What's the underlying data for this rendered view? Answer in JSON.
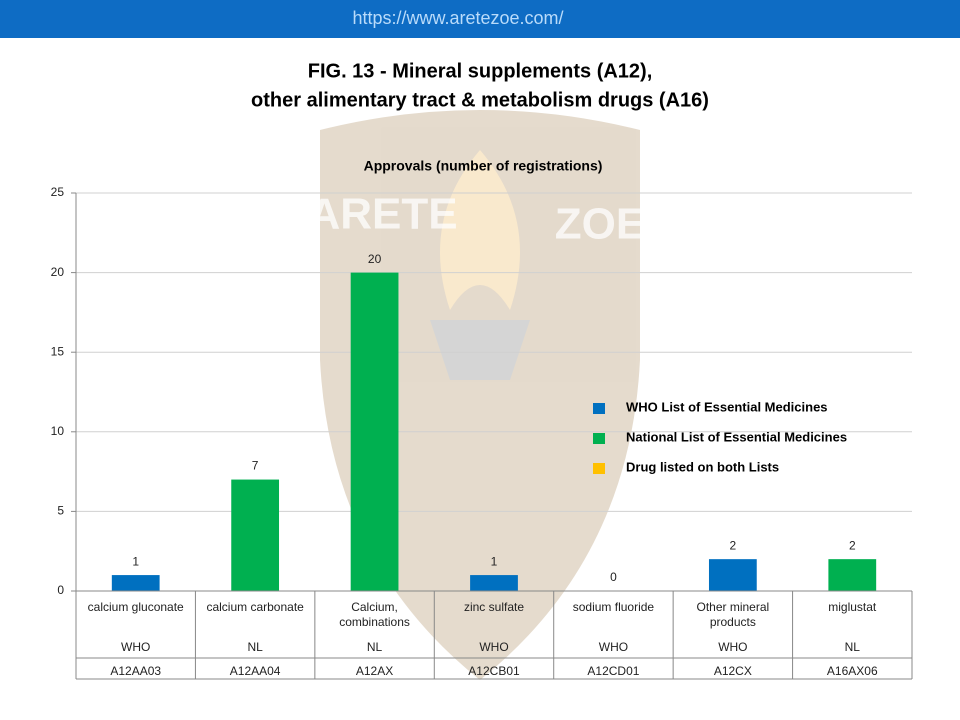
{
  "header": {
    "url": "https://www.aretezoe.com/"
  },
  "watermark": [
    "ARETE",
    "ZOE"
  ],
  "chart_data": {
    "type": "bar",
    "title": [
      "FIG. 13 - Mineral supplements (A12),",
      "other alimentary tract & metabolism drugs (A16)"
    ],
    "subtitle": "Approvals (number of registrations)",
    "categories": [
      "calcium gluconate",
      "calcium carbonate",
      "Calcium, combinations",
      "zinc sulfate",
      "sodium fluoride",
      "Other mineral products",
      "miglustat"
    ],
    "lists": [
      "WHO",
      "NL",
      "NL",
      "WHO",
      "WHO",
      "WHO",
      "NL"
    ],
    "codes": [
      "A12AA03",
      "A12AA04",
      "A12AX",
      "A12CB01",
      "A12CD01",
      "A12CX",
      "A16AX06"
    ],
    "values": [
      1,
      7,
      20,
      1,
      0,
      2,
      2
    ],
    "bar_colors": [
      "#0070c0",
      "#00b050",
      "#00b050",
      "#0070c0",
      "#0070c0",
      "#0070c0",
      "#00b050"
    ],
    "ylim": [
      0,
      25
    ],
    "yticks": [
      0,
      5,
      10,
      15,
      20,
      25
    ],
    "grid": true,
    "legend": [
      {
        "name": "WHO List of Essential Medicines",
        "color": "#0070c0"
      },
      {
        "name": "National List of Essential Medicines",
        "color": "#00b050"
      },
      {
        "name": "Drug listed on both Lists",
        "color": "#ffc000"
      }
    ]
  }
}
